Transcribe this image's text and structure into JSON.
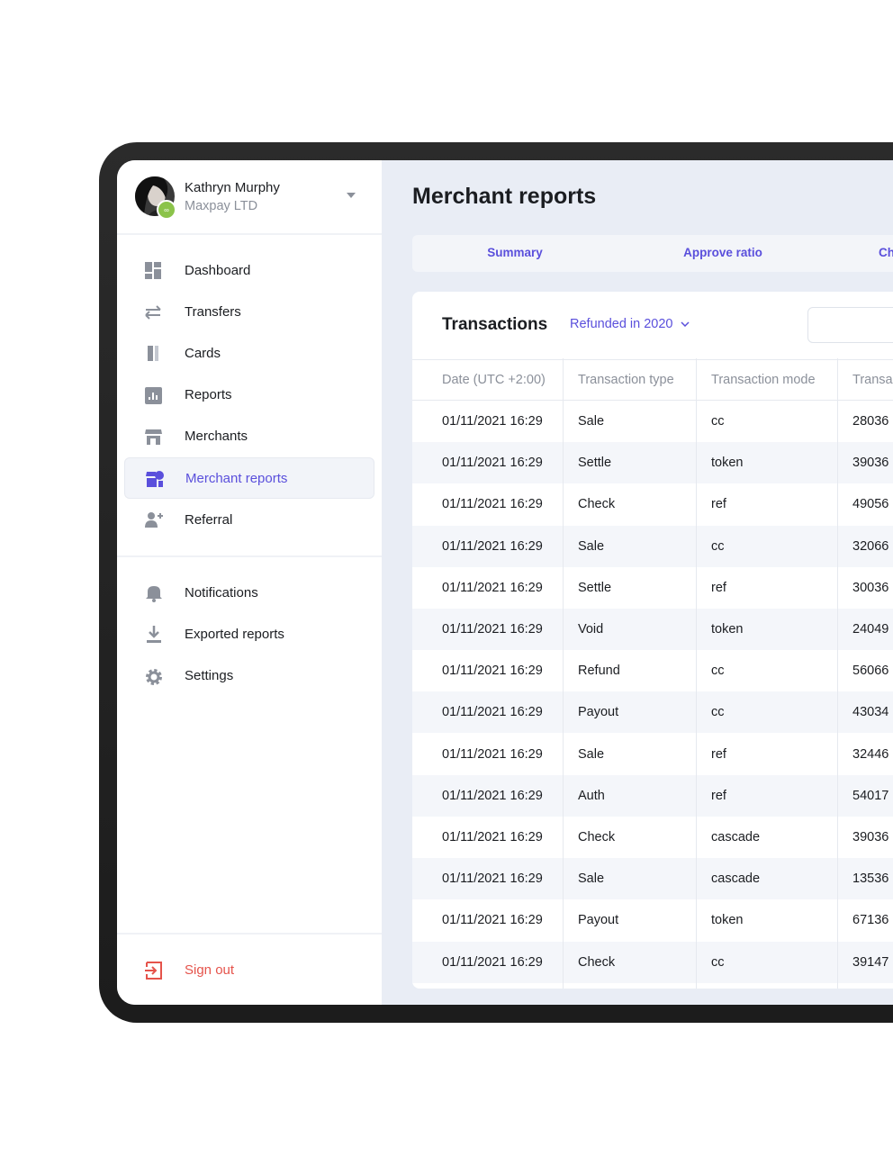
{
  "user": {
    "name": "Kathryn Murphy",
    "company": "Maxpay LTD"
  },
  "nav": {
    "main": [
      "Dashboard",
      "Transfers",
      "Cards",
      "Reports",
      "Merchants",
      "Merchant reports",
      "Referral"
    ],
    "secondary": [
      "Notifications",
      "Exported reports",
      "Settings"
    ],
    "sign_out": "Sign out"
  },
  "page": {
    "title": "Merchant reports",
    "tabs": [
      "Summary",
      "Approve ratio",
      "Ch"
    ]
  },
  "transactions": {
    "title": "Transactions",
    "filter": "Refunded in 2020",
    "columns": [
      "Date (UTC +2:00)",
      "Transaction type",
      "Transaction mode",
      "Transa"
    ],
    "rows": [
      [
        "01/11/2021 16:29",
        "Sale",
        "cc",
        "28036"
      ],
      [
        "01/11/2021 16:29",
        "Settle",
        "token",
        "39036"
      ],
      [
        "01/11/2021 16:29",
        "Check",
        "ref",
        "49056"
      ],
      [
        "01/11/2021 16:29",
        "Sale",
        "cc",
        "32066"
      ],
      [
        "01/11/2021 16:29",
        "Settle",
        "ref",
        "30036"
      ],
      [
        "01/11/2021 16:29",
        "Void",
        "token",
        "24049"
      ],
      [
        "01/11/2021 16:29",
        "Refund",
        "cc",
        "56066"
      ],
      [
        "01/11/2021 16:29",
        "Payout",
        "cc",
        "43034"
      ],
      [
        "01/11/2021 16:29",
        "Sale",
        "ref",
        "32446"
      ],
      [
        "01/11/2021 16:29",
        "Auth",
        "ref",
        "54017"
      ],
      [
        "01/11/2021 16:29",
        "Check",
        "cascade",
        "39036"
      ],
      [
        "01/11/2021 16:29",
        "Sale",
        "cascade",
        "13536"
      ],
      [
        "01/11/2021 16:29",
        "Payout",
        "token",
        "67136"
      ],
      [
        "01/11/2021 16:29",
        "Check",
        "cc",
        "39147"
      ]
    ]
  }
}
